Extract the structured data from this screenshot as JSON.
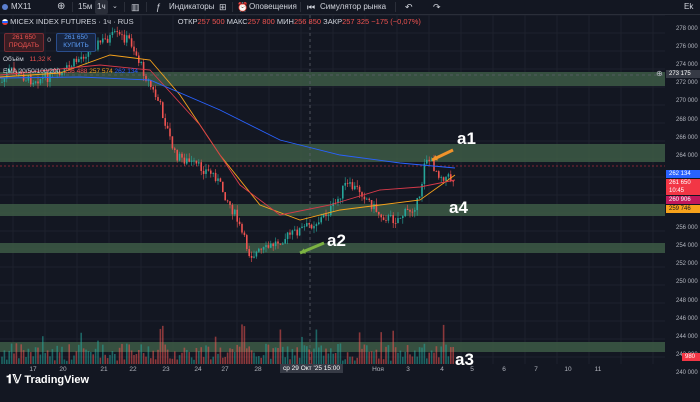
{
  "toolbar": {
    "symbol": "MX11",
    "timeframes": [
      "15м",
      "1ч"
    ],
    "active_timeframe": "1ч",
    "indicators_label": "Индикаторы",
    "alerts_label": "Оповещения",
    "replay_label": "Симулятор рынка",
    "corner_label": "Ek"
  },
  "header": {
    "title": "MICEX INDEX FUTURES · 1ч · RUS",
    "ohlc": [
      {
        "label": "ОТКР",
        "value": "257 500"
      },
      {
        "label": "МАКС",
        "value": "257 800"
      },
      {
        "label": "МИН",
        "value": "256 850"
      },
      {
        "label": "ЗАКР",
        "value": "257 325"
      }
    ],
    "change": "−175 (−0,07%)",
    "sell_price": "261 650",
    "sell_label": "ПРОДАТЬ",
    "spread": "0",
    "buy_price": "261 650",
    "buy_label": "КУПИТЬ"
  },
  "indicators": {
    "volume_label": "Объём",
    "volume_value": "11,32 K",
    "ema_label": "EMA 20/50/100/200",
    "ema_values": [
      "256 488",
      "257 574",
      "262 134"
    ]
  },
  "annotations": {
    "a1": "a1",
    "a2": "a2",
    "a3": "a3",
    "a4": "a4"
  },
  "watermark": "TradingView",
  "price_axis": {
    "ticks": [
      "278 000",
      "276 000",
      "274 000",
      "272 000",
      "270 000",
      "268 000",
      "266 000",
      "264 000",
      "262 000",
      "260 000",
      "258 000",
      "256 000",
      "254 000",
      "252 000",
      "250 000",
      "248 000",
      "246 000",
      "244 000",
      "242 000",
      "240 000"
    ],
    "tag_crosshair": "273 175",
    "tag_ema_blue": "262 134",
    "tag_last_price": "261 650",
    "tag_countdown": "10:45",
    "tag_ema_red": "260 906",
    "tag_ema_orange": "259 746",
    "tag_volume": "980"
  },
  "time_axis": {
    "labels": [
      "17",
      "20",
      "21",
      "22",
      "23",
      "24",
      "27",
      "28",
      "31",
      "Ноя",
      "3",
      "4",
      "5",
      "6",
      "7",
      "10",
      "11"
    ],
    "crosshair_label": "ср 29 Окт '25  15:00"
  },
  "colors": {
    "background": "#131722",
    "zone": "#3d5a45",
    "candle_up": "#26a69a",
    "candle_down": "#ef5350",
    "ema_orange": "#f7a21b",
    "ema_red": "#d83a4a",
    "ema_blue": "#2962ff",
    "arrow_orange": "#f0932b",
    "arrow_green": "#7cb342"
  }
}
